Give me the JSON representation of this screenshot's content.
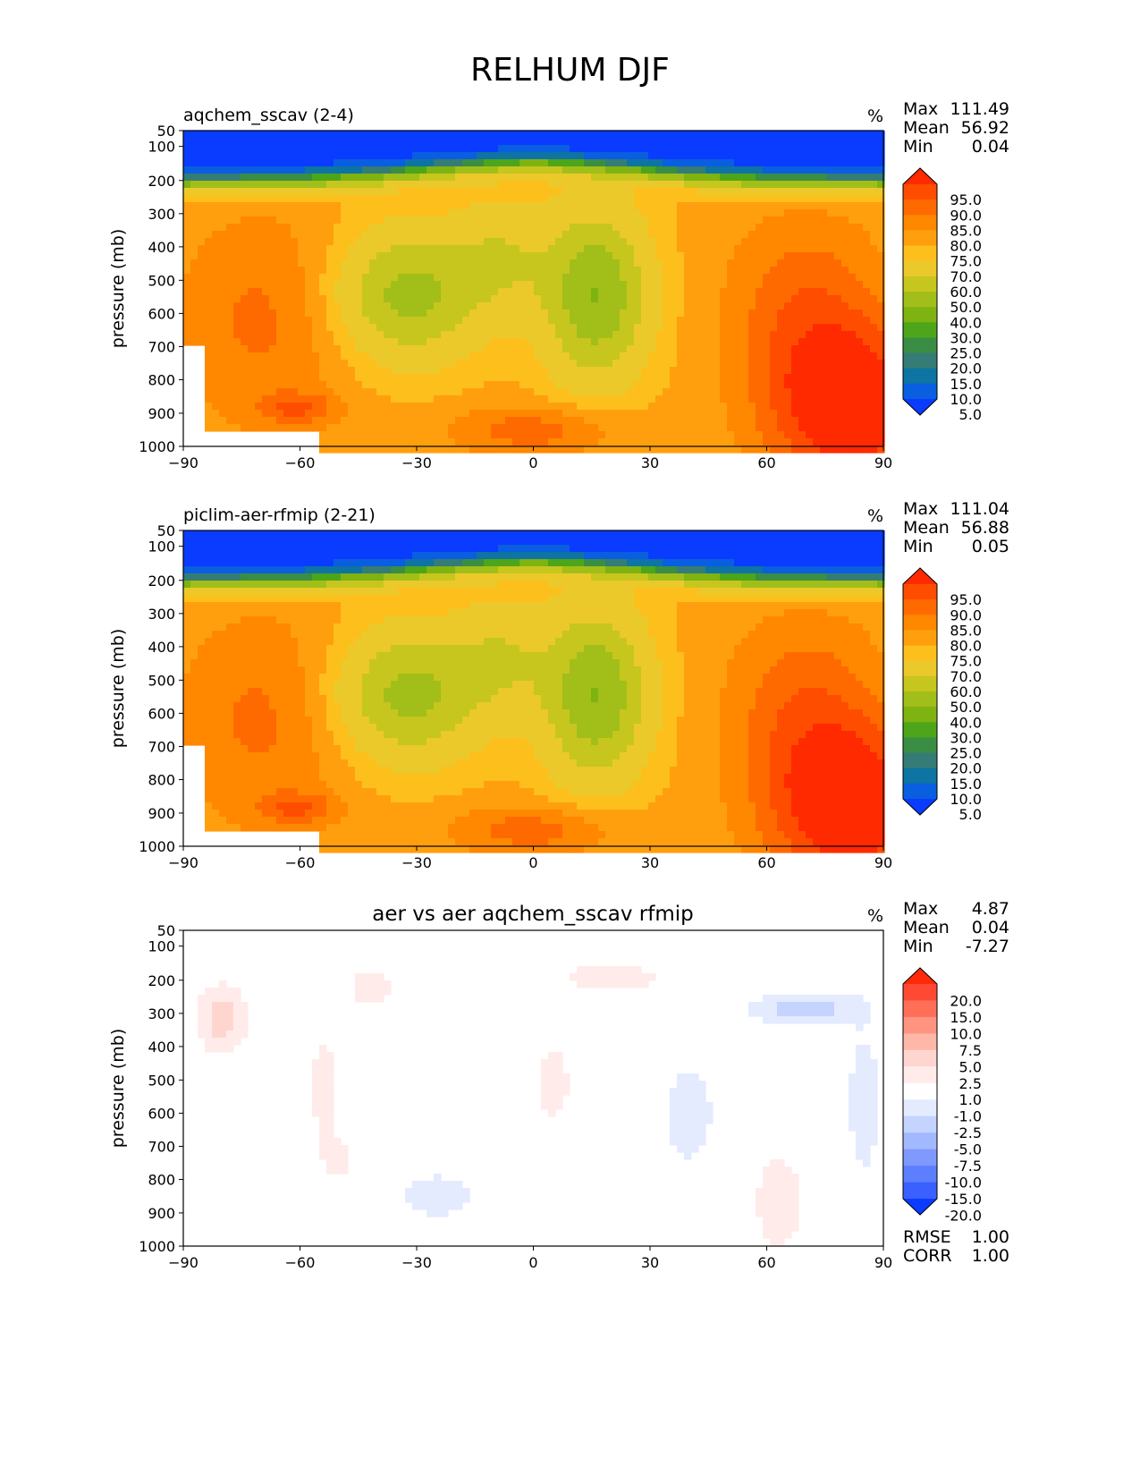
{
  "figure": {
    "title": "RELHUM DJF"
  },
  "chart_data": [
    {
      "type": "contour",
      "title": "aqchem_sscav (2-4)",
      "title_position": "left",
      "units": "%",
      "ylabel": "pressure (mb)",
      "xlabel": "",
      "xticks": [
        "−90",
        "−60",
        "−30",
        "0",
        "30",
        "60",
        "90"
      ],
      "yticks": [
        "50",
        "100",
        "200",
        "300",
        "400",
        "500",
        "600",
        "700",
        "800",
        "900",
        "1000"
      ],
      "xlim": [
        -90,
        90
      ],
      "ylim": [
        1000,
        50
      ],
      "stats": [
        {
          "label": "Max",
          "value": "111.49"
        },
        {
          "label": "Mean",
          "value": "56.92"
        },
        {
          "label": "Min",
          "value": "0.04"
        }
      ],
      "colorbar": {
        "levels": [
          "95.0",
          "90.0",
          "85.0",
          "80.0",
          "75.0",
          "70.0",
          "60.0",
          "50.0",
          "40.0",
          "30.0",
          "25.0",
          "20.0",
          "15.0",
          "10.0",
          "5.0"
        ],
        "colors": [
          "#ff2a00",
          "#ff4d00",
          "#ff6a00",
          "#ff8800",
          "#ff9f0e",
          "#fdbf1c",
          "#ebc92a",
          "#c7c61e",
          "#a2be19",
          "#7eb312",
          "#4da51a",
          "#3a8e43",
          "#347c75",
          "#0d74a3",
          "#0a5ee0",
          "#0a3cff"
        ]
      },
      "field": "humid"
    },
    {
      "type": "contour",
      "title": "piclim-aer-rfmip (2-21)",
      "title_position": "left",
      "units": "%",
      "ylabel": "pressure (mb)",
      "xlabel": "",
      "xticks": [
        "−90",
        "−60",
        "−30",
        "0",
        "30",
        "60",
        "90"
      ],
      "yticks": [
        "50",
        "100",
        "200",
        "300",
        "400",
        "500",
        "600",
        "700",
        "800",
        "900",
        "1000"
      ],
      "xlim": [
        -90,
        90
      ],
      "ylim": [
        1000,
        50
      ],
      "stats": [
        {
          "label": "Max",
          "value": "111.04"
        },
        {
          "label": "Mean",
          "value": "56.88"
        },
        {
          "label": "Min",
          "value": "0.05"
        }
      ],
      "colorbar": {
        "levels": [
          "95.0",
          "90.0",
          "85.0",
          "80.0",
          "75.0",
          "70.0",
          "60.0",
          "50.0",
          "40.0",
          "30.0",
          "25.0",
          "20.0",
          "15.0",
          "10.0",
          "5.0"
        ],
        "colors": [
          "#ff2a00",
          "#ff4d00",
          "#ff6a00",
          "#ff8800",
          "#ff9f0e",
          "#fdbf1c",
          "#ebc92a",
          "#c7c61e",
          "#a2be19",
          "#7eb312",
          "#4da51a",
          "#3a8e43",
          "#347c75",
          "#0d74a3",
          "#0a5ee0",
          "#0a3cff"
        ]
      },
      "field": "humid"
    },
    {
      "type": "contour",
      "title": "aer vs aer aqchem_sscav rfmip",
      "title_position": "center",
      "units": "%",
      "ylabel": "pressure (mb)",
      "xlabel": "",
      "xticks": [
        "−90",
        "−60",
        "−30",
        "0",
        "30",
        "60",
        "90"
      ],
      "yticks": [
        "50",
        "100",
        "200",
        "300",
        "400",
        "500",
        "600",
        "700",
        "800",
        "900",
        "1000"
      ],
      "xlim": [
        -90,
        90
      ],
      "ylim": [
        1000,
        50
      ],
      "stats": [
        {
          "label": "Max",
          "value": "4.87"
        },
        {
          "label": "Mean",
          "value": "0.04"
        },
        {
          "label": "Min",
          "value": "-7.27"
        }
      ],
      "extra_stats": [
        {
          "label": "RMSE",
          "value": "1.00"
        },
        {
          "label": "CORR",
          "value": "1.00"
        }
      ],
      "colorbar": {
        "levels": [
          "20.0",
          "15.0",
          "10.0",
          "7.5",
          "5.0",
          "2.5",
          "1.0",
          "-1.0",
          "-2.5",
          "-5.0",
          "-7.5",
          "-10.0",
          "-15.0",
          "-20.0"
        ],
        "colors": [
          "#ff2a0a",
          "#ff4a33",
          "#ff6f57",
          "#ff9580",
          "#ffb7a8",
          "#ffd6cf",
          "#ffecea",
          "#ffffff",
          "#e4ebff",
          "#c5d3ff",
          "#a3b9ff",
          "#8099ff",
          "#5d7eff",
          "#3a60ff",
          "#0a3cff"
        ]
      },
      "field": "diff"
    }
  ]
}
